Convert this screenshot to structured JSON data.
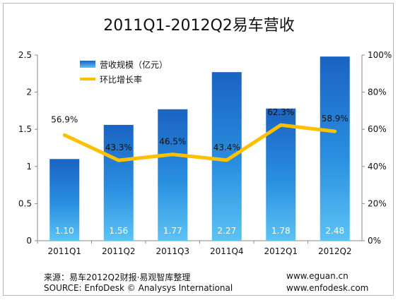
{
  "chart_data": {
    "type": "bar",
    "title": "2011Q1-2012Q2易车营收",
    "categories": [
      "2011Q1",
      "2011Q2",
      "2011Q3",
      "2011Q4",
      "2012Q1",
      "2012Q2"
    ],
    "series": [
      {
        "name": "营收规模（亿元）",
        "type": "bar",
        "axis": "left",
        "values": [
          1.1,
          1.56,
          1.77,
          2.27,
          1.78,
          2.48
        ],
        "value_labels": [
          "1.10",
          "1.56",
          "1.77",
          "2.27",
          "1.78",
          "2.48"
        ],
        "color": "#1f6fc6"
      },
      {
        "name": "环比增长率",
        "type": "line",
        "axis": "right",
        "values": [
          56.9,
          43.3,
          46.5,
          43.4,
          62.3,
          58.9
        ],
        "value_labels": [
          "56.9%",
          "43.3%",
          "46.5%",
          "43.4%",
          "62.3%",
          "58.9%"
        ],
        "color": "#ffc000"
      }
    ],
    "y_left": {
      "min": 0,
      "max": 2.5,
      "ticks": [
        "0",
        "0.5",
        "1",
        "1.5",
        "2",
        "2.5"
      ]
    },
    "y_right": {
      "min": 0,
      "max": 100,
      "ticks": [
        "0%",
        "20%",
        "40%",
        "60%",
        "80%",
        "100%"
      ]
    },
    "grid": false,
    "legend_position": "top-left"
  },
  "footer": {
    "source_cn": "来源：易车2012Q2财报·易观智库整理",
    "source_en": "SOURCE: EnfoDesk © Analysys International",
    "site1": "www.eguan.cn",
    "site2": "www.enfodesk.com"
  }
}
